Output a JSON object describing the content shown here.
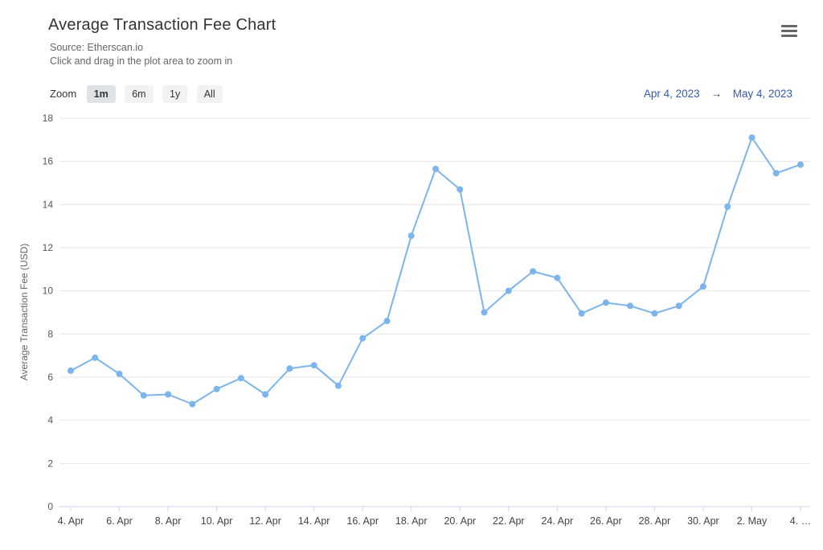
{
  "header": {
    "title": "Average Transaction Fee Chart",
    "source": "Source: Etherscan.io",
    "hint": "Click and drag in the plot area to zoom in"
  },
  "toolbar": {
    "zoom_label": "Zoom",
    "buttons": [
      {
        "label": "1m",
        "active": true
      },
      {
        "label": "6m",
        "active": false
      },
      {
        "label": "1y",
        "active": false
      },
      {
        "label": "All",
        "active": false
      }
    ],
    "range_from": "Apr 4, 2023",
    "range_arrow": "→",
    "range_to": "May 4, 2023"
  },
  "chart_data": {
    "type": "line",
    "title": "Average Transaction Fee Chart",
    "subtitle": "Source: Etherscan.io",
    "xlabel": "",
    "ylabel": "Average Transaction Fee (USD)",
    "ylim": [
      0,
      18
    ],
    "ytick_step": 2,
    "grid": true,
    "legend": false,
    "line_color": "#7cb5ec",
    "grid_color": "#e6e6e6",
    "axis_color": "#ccd6eb",
    "categories": [
      "4. Apr",
      "5. Apr",
      "6. Apr",
      "7. Apr",
      "8. Apr",
      "9. Apr",
      "10. Apr",
      "11. Apr",
      "12. Apr",
      "13. Apr",
      "14. Apr",
      "15. Apr",
      "16. Apr",
      "17. Apr",
      "18. Apr",
      "19. Apr",
      "20. Apr",
      "21. Apr",
      "22. Apr",
      "23. Apr",
      "24. Apr",
      "25. Apr",
      "26. Apr",
      "27. Apr",
      "28. Apr",
      "29. Apr",
      "30. Apr",
      "1. May",
      "2. May",
      "3. May",
      "4. May"
    ],
    "values": [
      6.3,
      6.9,
      6.15,
      5.15,
      5.2,
      4.75,
      5.45,
      5.95,
      5.2,
      6.4,
      6.55,
      5.6,
      7.8,
      8.6,
      12.55,
      15.65,
      14.7,
      9.0,
      10.0,
      10.9,
      10.6,
      8.95,
      9.45,
      9.3,
      8.95,
      9.3,
      10.2,
      13.9,
      17.1,
      15.45,
      15.85
    ],
    "tick_interval": 2,
    "tick_labels": [
      "4. Apr",
      "6. Apr",
      "8. Apr",
      "10. Apr",
      "12. Apr",
      "14. Apr",
      "16. Apr",
      "18. Apr",
      "20. Apr",
      "22. Apr",
      "24. Apr",
      "26. Apr",
      "28. Apr",
      "30. Apr",
      "2. May",
      "4. …"
    ]
  }
}
